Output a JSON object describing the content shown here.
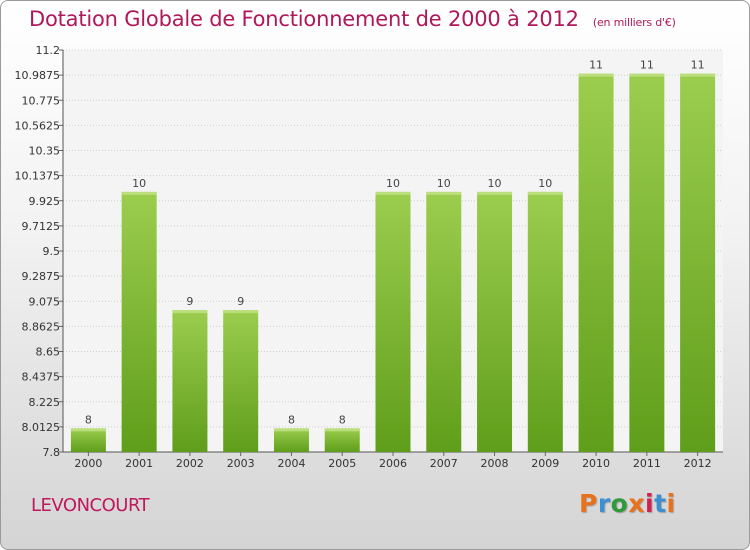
{
  "header": {
    "title": "Dotation Globale de Fonctionnement de 2000 à 2012",
    "unit": "(en milliers d'€)"
  },
  "footer": {
    "location": "LEVONCOURT",
    "brand": "Proxiti"
  },
  "colors": {
    "bar_top": "#9ccd4e",
    "bar_bottom": "#5f9e1a",
    "title": "#b0185a",
    "brand_letters": [
      "#e9711d",
      "#3d8fd4",
      "#2f9a3a",
      "#e9711d",
      "#d11f4f",
      "#3d8fd4",
      "#e9711d"
    ]
  },
  "chart_data": {
    "type": "bar",
    "categories": [
      "2000",
      "2001",
      "2002",
      "2003",
      "2004",
      "2005",
      "2006",
      "2007",
      "2008",
      "2009",
      "2010",
      "2011",
      "2012"
    ],
    "values": [
      8,
      10,
      9,
      9,
      8,
      8,
      10,
      10,
      10,
      10,
      11,
      11,
      11
    ],
    "data_labels": [
      "8",
      "10",
      "9",
      "9",
      "8",
      "8",
      "10",
      "10",
      "10",
      "10",
      "11",
      "11",
      "11"
    ],
    "ylim": [
      7.8,
      11.2
    ],
    "yticks": [
      "7.8",
      "8.0125",
      "8.225",
      "8.4375",
      "8.65",
      "8.8625",
      "9.075",
      "9.2875",
      "9.5",
      "9.7125",
      "9.925",
      "10.1375",
      "10.35",
      "10.5625",
      "10.775",
      "10.9875",
      "11.2"
    ],
    "grid": true,
    "xlabel": "",
    "ylabel": ""
  }
}
